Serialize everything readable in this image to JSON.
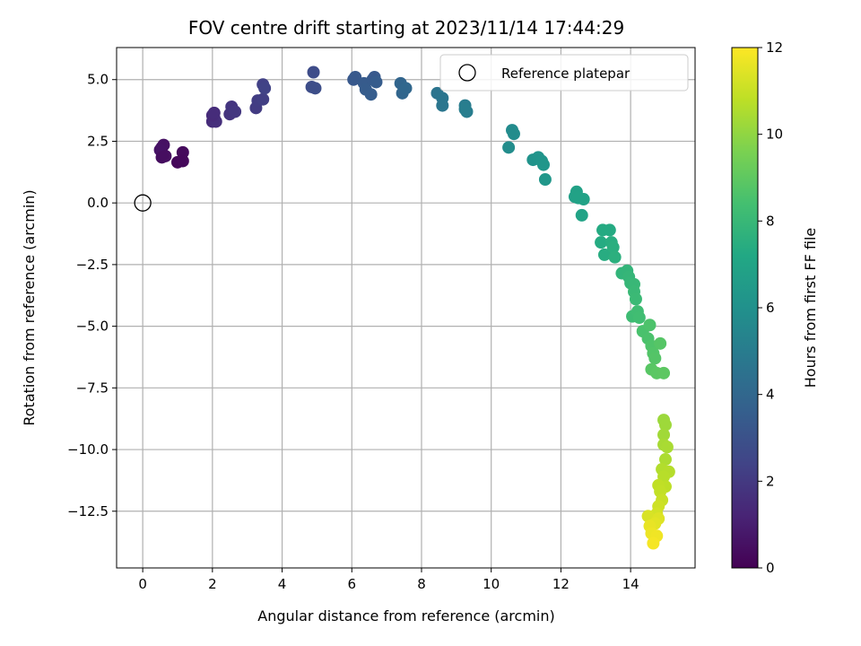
{
  "chart_data": {
    "type": "scatter",
    "title": "FOV centre drift starting at 2023/11/14 17:44:29",
    "xlabel": "Angular distance from reference (arcmin)",
    "ylabel": "Rotation from reference (arcmin)",
    "xlim": [
      -0.75,
      15.85
    ],
    "ylim": [
      -14.8,
      6.3
    ],
    "xticks": [
      0,
      2,
      4,
      6,
      8,
      10,
      12,
      14
    ],
    "yticks": [
      5.0,
      2.5,
      0.0,
      -2.5,
      -5.0,
      -7.5,
      -10.0,
      -12.5
    ],
    "xtick_labels": [
      "0",
      "2",
      "4",
      "6",
      "8",
      "10",
      "12",
      "14"
    ],
    "ytick_labels": [
      "5.0",
      "2.5",
      "0.0",
      "−2.5",
      "−5.0",
      "−7.5",
      "−10.0",
      "−12.5"
    ],
    "grid": true,
    "colormap": "viridis",
    "colorbar": {
      "label": "Hours from first FF file",
      "range": [
        0,
        12
      ],
      "ticks": [
        0,
        2,
        4,
        6,
        8,
        10,
        12
      ],
      "tick_labels": [
        "0",
        "2",
        "4",
        "6",
        "8",
        "10",
        "12"
      ]
    },
    "legend": {
      "position": "top-right",
      "entries": [
        "Reference platepar"
      ]
    },
    "reference_point": {
      "x": 0.0,
      "y": 0.0,
      "label": "Reference platepar"
    },
    "points": [
      {
        "x": 0.55,
        "y": 2.25,
        "h": 0.5
      },
      {
        "x": 0.6,
        "y": 2.35,
        "h": 0.55
      },
      {
        "x": 0.5,
        "y": 2.15,
        "h": 0.6
      },
      {
        "x": 0.55,
        "y": 1.85,
        "h": 0.4
      },
      {
        "x": 0.65,
        "y": 1.9,
        "h": 0.45
      },
      {
        "x": 1.15,
        "y": 2.05,
        "h": 0.3
      },
      {
        "x": 1.0,
        "y": 1.65,
        "h": 0.2
      },
      {
        "x": 1.15,
        "y": 1.7,
        "h": 0.25
      },
      {
        "x": 2.0,
        "y": 3.3,
        "h": 1.5
      },
      {
        "x": 2.05,
        "y": 3.45,
        "h": 1.55
      },
      {
        "x": 2.1,
        "y": 3.3,
        "h": 1.6
      },
      {
        "x": 2.0,
        "y": 3.55,
        "h": 1.45
      },
      {
        "x": 2.05,
        "y": 3.65,
        "h": 1.5
      },
      {
        "x": 2.5,
        "y": 3.6,
        "h": 1.8
      },
      {
        "x": 2.55,
        "y": 3.9,
        "h": 1.85
      },
      {
        "x": 2.65,
        "y": 3.7,
        "h": 1.9
      },
      {
        "x": 3.25,
        "y": 3.85,
        "h": 2.1
      },
      {
        "x": 3.3,
        "y": 4.15,
        "h": 2.15
      },
      {
        "x": 3.45,
        "y": 4.2,
        "h": 2.2
      },
      {
        "x": 3.45,
        "y": 4.8,
        "h": 2.3
      },
      {
        "x": 3.5,
        "y": 4.65,
        "h": 2.35
      },
      {
        "x": 4.85,
        "y": 4.7,
        "h": 2.8
      },
      {
        "x": 4.9,
        "y": 5.3,
        "h": 2.75
      },
      {
        "x": 4.95,
        "y": 4.65,
        "h": 2.85
      },
      {
        "x": 6.05,
        "y": 5.0,
        "h": 3.3
      },
      {
        "x": 6.1,
        "y": 5.1,
        "h": 3.35
      },
      {
        "x": 6.35,
        "y": 4.85,
        "h": 3.4
      },
      {
        "x": 6.4,
        "y": 4.6,
        "h": 3.45
      },
      {
        "x": 6.55,
        "y": 4.4,
        "h": 3.5
      },
      {
        "x": 6.6,
        "y": 5.0,
        "h": 3.4
      },
      {
        "x": 6.65,
        "y": 5.1,
        "h": 3.35
      },
      {
        "x": 6.7,
        "y": 4.9,
        "h": 3.45
      },
      {
        "x": 7.4,
        "y": 4.85,
        "h": 3.9
      },
      {
        "x": 7.45,
        "y": 4.45,
        "h": 3.95
      },
      {
        "x": 7.55,
        "y": 4.65,
        "h": 4.0
      },
      {
        "x": 8.45,
        "y": 4.45,
        "h": 4.6
      },
      {
        "x": 8.6,
        "y": 4.25,
        "h": 4.65
      },
      {
        "x": 8.6,
        "y": 3.95,
        "h": 4.7
      },
      {
        "x": 9.25,
        "y": 3.95,
        "h": 5.0
      },
      {
        "x": 9.3,
        "y": 3.7,
        "h": 5.05
      },
      {
        "x": 9.25,
        "y": 3.8,
        "h": 5.1
      },
      {
        "x": 10.5,
        "y": 2.25,
        "h": 5.8
      },
      {
        "x": 10.6,
        "y": 2.95,
        "h": 5.7
      },
      {
        "x": 10.65,
        "y": 2.8,
        "h": 5.75
      },
      {
        "x": 11.2,
        "y": 1.75,
        "h": 6.1
      },
      {
        "x": 11.35,
        "y": 1.85,
        "h": 6.15
      },
      {
        "x": 11.45,
        "y": 1.7,
        "h": 6.2
      },
      {
        "x": 11.5,
        "y": 1.55,
        "h": 6.25
      },
      {
        "x": 11.55,
        "y": 0.95,
        "h": 6.3
      },
      {
        "x": 12.4,
        "y": 0.25,
        "h": 6.8
      },
      {
        "x": 12.45,
        "y": 0.45,
        "h": 6.85
      },
      {
        "x": 12.5,
        "y": 0.2,
        "h": 6.9
      },
      {
        "x": 12.6,
        "y": -0.5,
        "h": 6.95
      },
      {
        "x": 12.65,
        "y": 0.15,
        "h": 6.9
      },
      {
        "x": 13.2,
        "y": -1.1,
        "h": 7.3
      },
      {
        "x": 13.15,
        "y": -1.6,
        "h": 7.35
      },
      {
        "x": 13.25,
        "y": -2.1,
        "h": 7.4
      },
      {
        "x": 13.4,
        "y": -1.1,
        "h": 7.3
      },
      {
        "x": 13.45,
        "y": -1.6,
        "h": 7.45
      },
      {
        "x": 13.5,
        "y": -1.8,
        "h": 7.5
      },
      {
        "x": 13.55,
        "y": -2.2,
        "h": 7.55
      },
      {
        "x": 13.75,
        "y": -2.85,
        "h": 7.8
      },
      {
        "x": 13.9,
        "y": -2.75,
        "h": 7.85
      },
      {
        "x": 13.95,
        "y": -3.0,
        "h": 7.9
      },
      {
        "x": 14.0,
        "y": -3.25,
        "h": 7.95
      },
      {
        "x": 14.1,
        "y": -3.3,
        "h": 8.0
      },
      {
        "x": 14.1,
        "y": -3.6,
        "h": 8.05
      },
      {
        "x": 14.15,
        "y": -3.9,
        "h": 8.1
      },
      {
        "x": 14.05,
        "y": -4.6,
        "h": 8.2
      },
      {
        "x": 14.2,
        "y": -4.4,
        "h": 8.25
      },
      {
        "x": 14.25,
        "y": -4.65,
        "h": 8.3
      },
      {
        "x": 14.35,
        "y": -5.2,
        "h": 8.5
      },
      {
        "x": 14.5,
        "y": -5.5,
        "h": 8.55
      },
      {
        "x": 14.55,
        "y": -4.95,
        "h": 8.6
      },
      {
        "x": 14.6,
        "y": -5.8,
        "h": 8.65
      },
      {
        "x": 14.65,
        "y": -6.1,
        "h": 8.7
      },
      {
        "x": 14.7,
        "y": -6.3,
        "h": 8.75
      },
      {
        "x": 14.85,
        "y": -5.7,
        "h": 8.8
      },
      {
        "x": 14.6,
        "y": -6.75,
        "h": 8.85
      },
      {
        "x": 14.75,
        "y": -6.9,
        "h": 8.9
      },
      {
        "x": 14.95,
        "y": -6.9,
        "h": 8.95
      },
      {
        "x": 14.95,
        "y": -8.8,
        "h": 10.2
      },
      {
        "x": 15.0,
        "y": -9.0,
        "h": 10.25
      },
      {
        "x": 14.95,
        "y": -9.4,
        "h": 10.3
      },
      {
        "x": 14.95,
        "y": -9.8,
        "h": 10.4
      },
      {
        "x": 15.05,
        "y": -9.9,
        "h": 10.45
      },
      {
        "x": 15.0,
        "y": -10.4,
        "h": 10.5
      },
      {
        "x": 14.9,
        "y": -10.8,
        "h": 10.6
      },
      {
        "x": 15.1,
        "y": -10.9,
        "h": 10.65
      },
      {
        "x": 14.95,
        "y": -11.1,
        "h": 10.7
      },
      {
        "x": 15.0,
        "y": -11.5,
        "h": 10.8
      },
      {
        "x": 14.8,
        "y": -11.45,
        "h": 10.85
      },
      {
        "x": 14.85,
        "y": -11.7,
        "h": 10.9
      },
      {
        "x": 14.9,
        "y": -12.05,
        "h": 11.0
      },
      {
        "x": 14.8,
        "y": -12.3,
        "h": 11.1
      },
      {
        "x": 14.75,
        "y": -12.6,
        "h": 11.2
      },
      {
        "x": 14.5,
        "y": -12.7,
        "h": 11.3
      },
      {
        "x": 14.8,
        "y": -12.8,
        "h": 11.4
      },
      {
        "x": 14.7,
        "y": -13.0,
        "h": 11.5
      },
      {
        "x": 14.55,
        "y": -13.1,
        "h": 11.6
      },
      {
        "x": 14.6,
        "y": -13.4,
        "h": 11.7
      },
      {
        "x": 14.75,
        "y": -13.5,
        "h": 11.75
      },
      {
        "x": 14.65,
        "y": -13.8,
        "h": 11.85
      }
    ]
  }
}
